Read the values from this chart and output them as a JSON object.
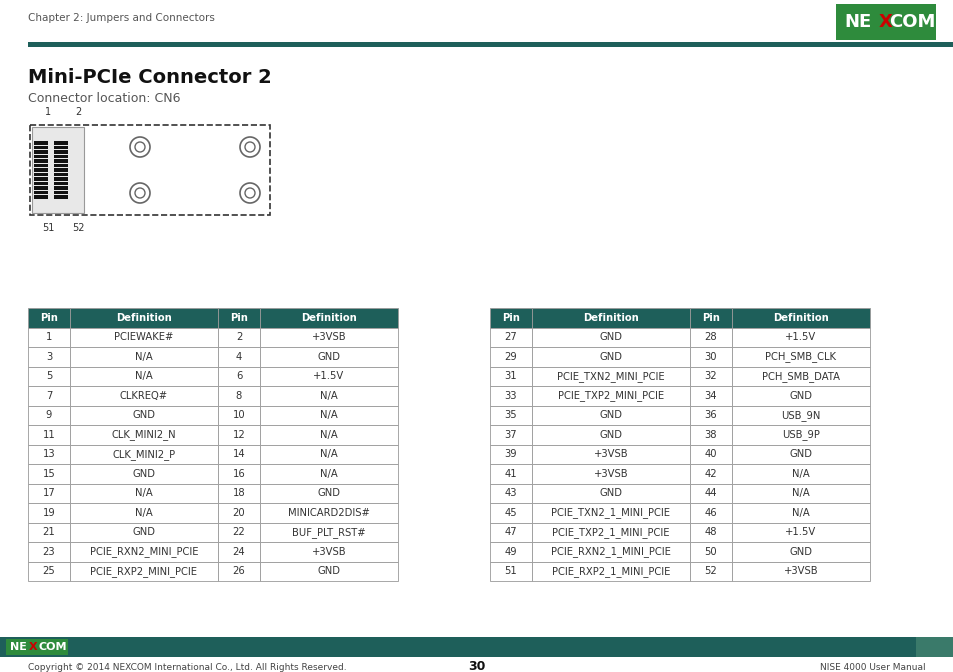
{
  "title": "Mini-PCIe Connector 2",
  "subtitle": "Connector location: CN6",
  "header_color": "#1e5f5a",
  "header_text_color": "#ffffff",
  "bg_color": "#ffffff",
  "page_number": "30",
  "chapter_text": "Chapter 2: Jumpers and Connectors",
  "footer_left": "Copyright © 2014 NEXCOM International Co., Ltd. All Rights Reserved.",
  "footer_right": "NISE 4000 User Manual",
  "left_table": [
    [
      "Pin",
      "Definition",
      "Pin",
      "Definition"
    ],
    [
      "1",
      "PCIEWAKE#",
      "2",
      "+3VSB"
    ],
    [
      "3",
      "N/A",
      "4",
      "GND"
    ],
    [
      "5",
      "N/A",
      "6",
      "+1.5V"
    ],
    [
      "7",
      "CLKREQ#",
      "8",
      "N/A"
    ],
    [
      "9",
      "GND",
      "10",
      "N/A"
    ],
    [
      "11",
      "CLK_MINI2_N",
      "12",
      "N/A"
    ],
    [
      "13",
      "CLK_MINI2_P",
      "14",
      "N/A"
    ],
    [
      "15",
      "GND",
      "16",
      "N/A"
    ],
    [
      "17",
      "N/A",
      "18",
      "GND"
    ],
    [
      "19",
      "N/A",
      "20",
      "MINICARD2DIS#"
    ],
    [
      "21",
      "GND",
      "22",
      "BUF_PLT_RST#"
    ],
    [
      "23",
      "PCIE_RXN2_MINI_PCIE",
      "24",
      "+3VSB"
    ],
    [
      "25",
      "PCIE_RXP2_MINI_PCIE",
      "26",
      "GND"
    ]
  ],
  "right_table": [
    [
      "Pin",
      "Definition",
      "Pin",
      "Definition"
    ],
    [
      "27",
      "GND",
      "28",
      "+1.5V"
    ],
    [
      "29",
      "GND",
      "30",
      "PCH_SMB_CLK"
    ],
    [
      "31",
      "PCIE_TXN2_MINI_PCIE",
      "32",
      "PCH_SMB_DATA"
    ],
    [
      "33",
      "PCIE_TXP2_MINI_PCIE",
      "34",
      "GND"
    ],
    [
      "35",
      "GND",
      "36",
      "USB_9N"
    ],
    [
      "37",
      "GND",
      "38",
      "USB_9P"
    ],
    [
      "39",
      "+3VSB",
      "40",
      "GND"
    ],
    [
      "41",
      "+3VSB",
      "42",
      "N/A"
    ],
    [
      "43",
      "GND",
      "44",
      "N/A"
    ],
    [
      "45",
      "PCIE_TXN2_1_MINI_PCIE",
      "46",
      "N/A"
    ],
    [
      "47",
      "PCIE_TXP2_1_MINI_PCIE",
      "48",
      "+1.5V"
    ],
    [
      "49",
      "PCIE_RXN2_1_MINI_PCIE",
      "50",
      "GND"
    ],
    [
      "51",
      "PCIE_RXP2_1_MINI_PCIE",
      "52",
      "+3VSB"
    ]
  ]
}
